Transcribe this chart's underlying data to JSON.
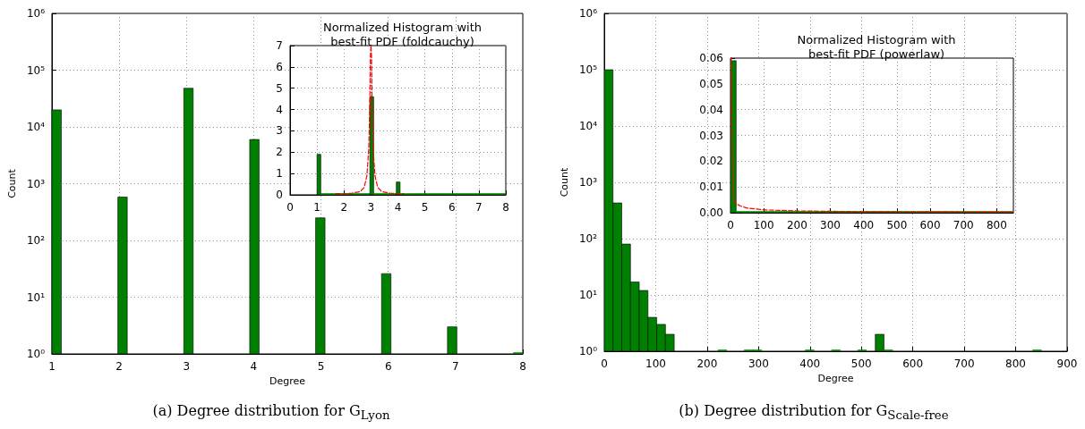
{
  "chart_data": [
    {
      "type": "histogram",
      "title": "(a) Degree distribution for G$_{Lyon}$",
      "xlabel": "Degree",
      "ylabel": "Count",
      "log": "y",
      "grid": true,
      "color": "#008000",
      "bins": [
        1,
        1.14,
        1.28,
        1.42,
        1.56,
        1.7,
        1.84,
        1.98,
        2.12,
        2.26,
        2.4,
        2.54,
        2.68,
        2.82,
        2.96,
        3.1,
        3.24,
        3.38,
        3.52,
        3.66,
        3.8,
        3.94,
        4.08,
        4.22,
        4.36,
        4.5,
        4.64,
        4.78,
        4.92,
        5.06,
        5.2,
        5.34,
        5.48,
        5.62,
        5.76,
        5.9,
        6.04,
        6.18,
        6.32,
        6.46,
        6.6,
        6.74,
        6.88,
        7.02,
        7.16,
        7.3,
        7.44,
        7.58,
        7.72,
        7.86,
        8
      ],
      "values": [
        20000,
        null,
        null,
        null,
        null,
        null,
        null,
        580,
        null,
        null,
        null,
        null,
        null,
        null,
        48000,
        null,
        null,
        null,
        null,
        null,
        null,
        6000,
        null,
        null,
        null,
        null,
        null,
        null,
        250,
        null,
        null,
        null,
        null,
        null,
        null,
        26,
        null,
        null,
        null,
        null,
        null,
        null,
        3,
        null,
        null,
        null,
        null,
        null,
        null,
        1
      ],
      "xlim": [
        1,
        8
      ],
      "xticks": [
        1,
        2,
        3,
        4,
        5,
        6,
        7,
        8
      ],
      "ylim": [
        1,
        1000000
      ],
      "yticks": [
        {
          "value": 1,
          "label": "10⁰"
        },
        {
          "value": 10,
          "label": "10¹"
        },
        {
          "value": 100,
          "label": "10²"
        },
        {
          "value": 1000,
          "label": "10³"
        },
        {
          "value": 10000,
          "label": "10⁴"
        },
        {
          "value": 100000,
          "label": "10⁵"
        },
        {
          "value": 1000000,
          "label": "10⁶"
        }
      ]
    },
    {
      "type": "histogram",
      "title": "Normalized Histogram with\nbest-fit PDF (foldcauchy)",
      "grid": true,
      "xlim": [
        0,
        8
      ],
      "xticks": [
        0,
        1,
        2,
        3,
        4,
        5,
        6,
        7,
        8
      ],
      "ylim": [
        0,
        7
      ],
      "yticks": [
        0,
        1,
        2,
        3,
        4,
        5,
        6,
        7
      ],
      "series": [
        {
          "type": "histogram",
          "color": "#008000",
          "bins": [
            1,
            1.14,
            1.28,
            1.42,
            1.56,
            1.7,
            1.84,
            1.98,
            2.12,
            2.26,
            2.4,
            2.54,
            2.68,
            2.82,
            2.96,
            3.1,
            3.24,
            3.38,
            3.52,
            3.66,
            3.8,
            3.94,
            4.08,
            4.22,
            4.36,
            4.5,
            4.64,
            4.78,
            4.92,
            5.06,
            5.2,
            5.34,
            5.48,
            5.62,
            5.76,
            5.9,
            6.04,
            6.18,
            6.32,
            6.46,
            6.6,
            6.74,
            6.88,
            7.02,
            7.16,
            7.3,
            7.44,
            7.58,
            7.72,
            7.86,
            8
          ],
          "values": [
            1.9,
            0,
            0,
            0,
            0,
            0,
            0,
            0.05,
            0,
            0,
            0,
            0,
            0,
            0,
            4.6,
            0,
            0,
            0,
            0,
            0,
            0,
            0.6,
            0,
            0,
            0,
            0,
            0,
            0,
            0,
            0,
            0,
            0,
            0,
            0,
            0,
            0,
            0,
            0,
            0,
            0,
            0,
            0,
            0,
            0,
            0,
            0,
            0,
            0,
            0,
            0
          ]
        },
        {
          "type": "line",
          "color": "#ff0000",
          "line_style": "dashed",
          "marker": "none",
          "x": [
            1.7,
            2,
            2.3,
            2.6,
            2.75,
            2.85,
            2.92,
            2.96,
            2.98,
            3,
            3.02,
            3.04,
            3.08,
            3.15,
            3.25,
            3.4,
            3.7,
            4,
            4.2
          ],
          "values": [
            0.06,
            0.05,
            0.08,
            0.15,
            0.35,
            0.9,
            2.2,
            4.5,
            6.5,
            7,
            6.5,
            4.5,
            2.2,
            0.9,
            0.35,
            0.15,
            0.08,
            0.06,
            0.06
          ]
        }
      ]
    },
    {
      "type": "histogram",
      "title": "(b) Degree distribution for G$_{Scale-free}$",
      "xlabel": "Degree",
      "ylabel": "Count",
      "log": "y",
      "grid": true,
      "color": "#008000",
      "bins": [
        0,
        17,
        34,
        51,
        68,
        85,
        102,
        119,
        136,
        153,
        170,
        187,
        204,
        221,
        238,
        255,
        272,
        289,
        306,
        323,
        340,
        357,
        374,
        391,
        408,
        425,
        442,
        459,
        476,
        493,
        510,
        527,
        544,
        561,
        578,
        595,
        612,
        629,
        646,
        663,
        680,
        697,
        714,
        731,
        748,
        765,
        782,
        799,
        816,
        833,
        850
      ],
      "values": [
        100000,
        430,
        80,
        17,
        12,
        4,
        3,
        2,
        null,
        null,
        null,
        null,
        null,
        1,
        null,
        null,
        1,
        1,
        null,
        null,
        null,
        null,
        null,
        1,
        null,
        null,
        1,
        null,
        null,
        1,
        null,
        2,
        1,
        null,
        null,
        null,
        null,
        null,
        null,
        null,
        null,
        null,
        null,
        null,
        null,
        null,
        null,
        null,
        null,
        1
      ],
      "xlim": [
        0,
        900
      ],
      "xticks": [
        0,
        100,
        200,
        300,
        400,
        500,
        600,
        700,
        800,
        900
      ],
      "ylim": [
        1,
        1000000
      ],
      "yticks": [
        {
          "value": 1,
          "label": "10⁰"
        },
        {
          "value": 10,
          "label": "10¹"
        },
        {
          "value": 100,
          "label": "10²"
        },
        {
          "value": 1000,
          "label": "10³"
        },
        {
          "value": 10000,
          "label": "10⁴"
        },
        {
          "value": 100000,
          "label": "10⁵"
        },
        {
          "value": 1000000,
          "label": "10⁶"
        }
      ]
    },
    {
      "type": "histogram",
      "title": "Normalized Histogram with\nbest-fit PDF (powerlaw)",
      "grid": true,
      "xlim": [
        0,
        850
      ],
      "xticks": [
        0,
        100,
        200,
        300,
        400,
        500,
        600,
        700,
        800
      ],
      "ylim": [
        0,
        0.06
      ],
      "yticks": [
        {
          "value": 0,
          "label": "0.00"
        },
        0.01,
        0.02,
        0.03,
        0.04,
        0.05,
        0.06
      ],
      "series": [
        {
          "type": "histogram",
          "color": "#008000",
          "bins": [
            0,
            17,
            34,
            51,
            68,
            85,
            102,
            119,
            136,
            153,
            170,
            187,
            204,
            221,
            238,
            255,
            272,
            289,
            306,
            323,
            340,
            357,
            374,
            391,
            408,
            425,
            442,
            459,
            476,
            493,
            510,
            527,
            544,
            561,
            578,
            595,
            612,
            629,
            646,
            663,
            680,
            697,
            714,
            731,
            748,
            765,
            782,
            799,
            816,
            833,
            850
          ],
          "values": [
            0.059,
            0,
            0,
            0,
            0,
            0,
            0,
            0,
            0,
            0,
            0,
            0,
            0,
            0,
            0,
            0,
            0,
            0,
            0,
            0,
            0,
            0,
            0,
            0,
            0,
            0,
            0,
            0,
            0,
            0,
            0,
            0,
            0,
            0,
            0,
            0,
            0,
            0,
            0,
            0,
            0,
            0,
            0,
            0,
            0,
            0,
            0,
            0,
            0,
            0
          ]
        },
        {
          "type": "line",
          "color": "#ff0000",
          "line_style": "dashed",
          "marker": "none",
          "x": [
            2,
            4,
            6,
            8,
            10,
            12,
            15,
            20,
            30,
            50,
            100,
            200,
            400,
            600,
            850
          ],
          "values": [
            0.06,
            0.04,
            0.02,
            0.01,
            0.006,
            0.0045,
            0.0038,
            0.0033,
            0.0026,
            0.0018,
            0.0011,
            0.0007,
            0.0004,
            0.0003,
            0.0002
          ]
        }
      ]
    }
  ]
}
